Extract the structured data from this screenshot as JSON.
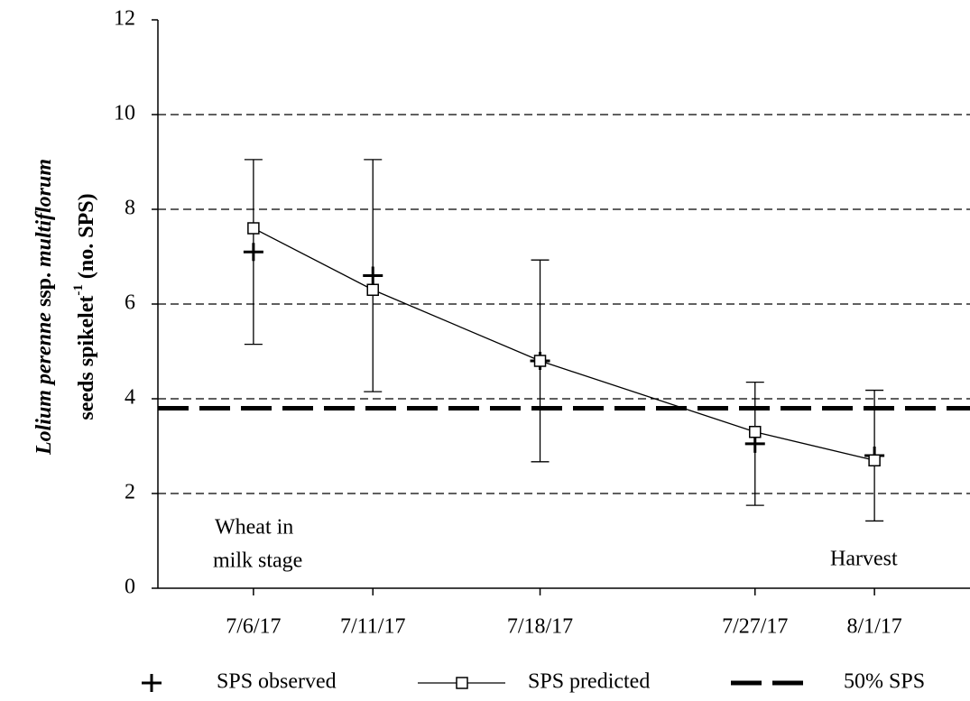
{
  "chart_data": {
    "type": "line",
    "x": [
      "7/6/17",
      "7/11/17",
      "7/18/17",
      "7/27/17",
      "8/1/17"
    ],
    "xlim": [
      "7/2/17",
      "8/5/17"
    ],
    "ylim": [
      0,
      12
    ],
    "yticks": [
      0,
      2,
      4,
      6,
      8,
      10,
      12
    ],
    "grid": true,
    "ylabel": {
      "line1": [
        "Lolium perenne",
        " ssp. ",
        "multiflorum"
      ],
      "line2": [
        "seeds spikelet",
        "-1",
        " (no. SPS)"
      ]
    },
    "series": [
      {
        "name": "SPS observed",
        "color": "#000000",
        "marker": "plus",
        "values": [
          7.1,
          6.6,
          4.8,
          3.05,
          2.8
        ],
        "errors": [
          1.95,
          2.45,
          2.13,
          1.3,
          1.38
        ]
      },
      {
        "name": "SPS predicted",
        "color": "#000000",
        "marker": "square",
        "values": [
          7.6,
          6.3,
          4.8,
          3.3,
          2.7
        ]
      }
    ],
    "hlines": [
      {
        "name": "50% SPS",
        "value": 3.8,
        "color": "#000000"
      }
    ],
    "annotations": [
      {
        "lines": [
          "Wheat in",
          "milk stage"
        ]
      },
      {
        "lines": [
          "Harvest"
        ]
      }
    ]
  }
}
